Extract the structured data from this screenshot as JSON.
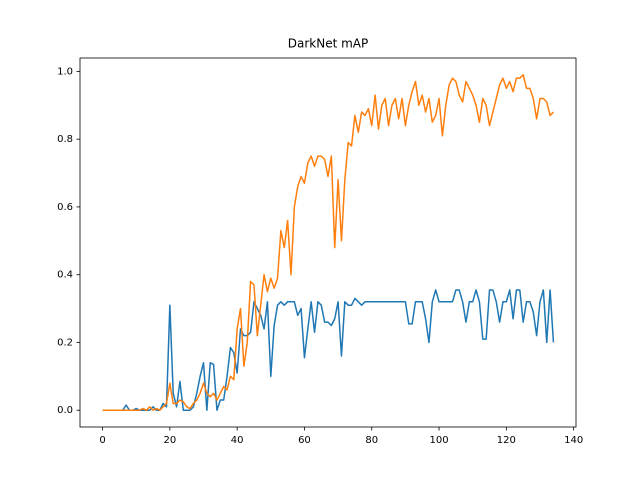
{
  "chart_data": {
    "type": "line",
    "title": "DarkNet mAP",
    "x": [
      0,
      1,
      2,
      3,
      4,
      5,
      6,
      7,
      8,
      9,
      10,
      11,
      12,
      13,
      14,
      15,
      16,
      17,
      18,
      19,
      20,
      21,
      22,
      23,
      24,
      25,
      26,
      27,
      28,
      29,
      30,
      31,
      32,
      33,
      34,
      35,
      36,
      37,
      38,
      39,
      40,
      41,
      42,
      43,
      44,
      45,
      46,
      47,
      48,
      49,
      50,
      51,
      52,
      53,
      54,
      55,
      56,
      57,
      58,
      59,
      60,
      61,
      62,
      63,
      64,
      65,
      66,
      67,
      68,
      69,
      70,
      71,
      72,
      73,
      74,
      75,
      76,
      77,
      78,
      79,
      80,
      81,
      82,
      83,
      84,
      85,
      86,
      87,
      88,
      89,
      90,
      91,
      92,
      93,
      94,
      95,
      96,
      97,
      98,
      99,
      100,
      101,
      102,
      103,
      104,
      105,
      106,
      107,
      108,
      109,
      110,
      111,
      112,
      113,
      114,
      115,
      116,
      117,
      118,
      119,
      120,
      121,
      122,
      123,
      124,
      125,
      126,
      127,
      128,
      129,
      130,
      131,
      132,
      133,
      134
    ],
    "series": [
      {
        "color": "#1f77b4",
        "values": [
          0,
          0,
          0,
          0,
          0,
          0,
          0,
          0.015,
          0,
          0,
          0.005,
          0,
          0,
          0,
          0,
          0.01,
          0,
          0,
          0.02,
          0.01,
          0.31,
          0.05,
          0.01,
          0.085,
          0,
          0,
          0,
          0.01,
          0.05,
          0.1,
          0.14,
          0,
          0.14,
          0.135,
          0,
          0.03,
          0.03,
          0.1,
          0.185,
          0.17,
          0.11,
          0.24,
          0.22,
          0.22,
          0.23,
          0.32,
          0.3,
          0.28,
          0.24,
          0.32,
          0.1,
          0.25,
          0.31,
          0.32,
          0.31,
          0.32,
          0.32,
          0.32,
          0.28,
          0.3,
          0.155,
          0.24,
          0.32,
          0.23,
          0.32,
          0.31,
          0.26,
          0.26,
          0.25,
          0.27,
          0.32,
          0.16,
          0.32,
          0.31,
          0.31,
          0.33,
          0.32,
          0.31,
          0.32,
          0.32,
          0.32,
          0.32,
          0.32,
          0.32,
          0.32,
          0.32,
          0.32,
          0.32,
          0.32,
          0.32,
          0.32,
          0.255,
          0.255,
          0.32,
          0.32,
          0.32,
          0.27,
          0.2,
          0.32,
          0.355,
          0.32,
          0.32,
          0.32,
          0.32,
          0.32,
          0.355,
          0.355,
          0.32,
          0.26,
          0.32,
          0.32,
          0.355,
          0.32,
          0.21,
          0.21,
          0.355,
          0.355,
          0.32,
          0.26,
          0.32,
          0.32,
          0.355,
          0.27,
          0.355,
          0.355,
          0.26,
          0.32,
          0.32,
          0.29,
          0.22,
          0.32,
          0.355,
          0.2,
          0.355,
          0.2
        ]
      },
      {
        "color": "#ff7f0e",
        "values": [
          0,
          0,
          0,
          0,
          0,
          0,
          0,
          0,
          0,
          0,
          0,
          0,
          0.005,
          0,
          0.01,
          0,
          0.005,
          0,
          0.01,
          0.02,
          0.08,
          0.02,
          0.02,
          0.03,
          0.025,
          0.01,
          0.005,
          0.02,
          0.03,
          0.05,
          0.08,
          0.05,
          0.04,
          0.05,
          0.03,
          0.05,
          0.07,
          0.06,
          0.1,
          0.09,
          0.24,
          0.3,
          0.13,
          0.2,
          0.38,
          0.37,
          0.22,
          0.31,
          0.4,
          0.35,
          0.39,
          0.36,
          0.39,
          0.53,
          0.48,
          0.56,
          0.4,
          0.6,
          0.66,
          0.69,
          0.67,
          0.73,
          0.75,
          0.72,
          0.75,
          0.75,
          0.74,
          0.69,
          0.75,
          0.48,
          0.68,
          0.5,
          0.68,
          0.79,
          0.78,
          0.87,
          0.82,
          0.88,
          0.87,
          0.89,
          0.84,
          0.93,
          0.83,
          0.9,
          0.92,
          0.84,
          0.9,
          0.92,
          0.86,
          0.92,
          0.84,
          0.9,
          0.94,
          0.97,
          0.9,
          0.93,
          0.88,
          0.92,
          0.85,
          0.87,
          0.92,
          0.81,
          0.9,
          0.96,
          0.98,
          0.97,
          0.93,
          0.91,
          0.97,
          0.95,
          0.93,
          0.9,
          0.85,
          0.92,
          0.9,
          0.84,
          0.88,
          0.92,
          0.96,
          0.98,
          0.95,
          0.97,
          0.94,
          0.98,
          0.98,
          0.99,
          0.95,
          0.95,
          0.92,
          0.86,
          0.92,
          0.92,
          0.91,
          0.87,
          0.88
        ]
      }
    ],
    "xlim": [
      -6.7,
      140.7
    ],
    "ylim": [
      -0.0495,
      1.0395
    ],
    "xticks": [
      0,
      20,
      40,
      60,
      80,
      100,
      120,
      140
    ],
    "yticks": [
      {
        "value": 0,
        "label": "0.0"
      },
      {
        "value": 0.2,
        "label": "0.2"
      },
      {
        "value": 0.4,
        "label": "0.4"
      },
      {
        "value": 0.6,
        "label": "0.6"
      },
      {
        "value": 0.8,
        "label": "0.8"
      },
      {
        "value": 1,
        "label": "1.0"
      }
    ],
    "grid": false
  }
}
